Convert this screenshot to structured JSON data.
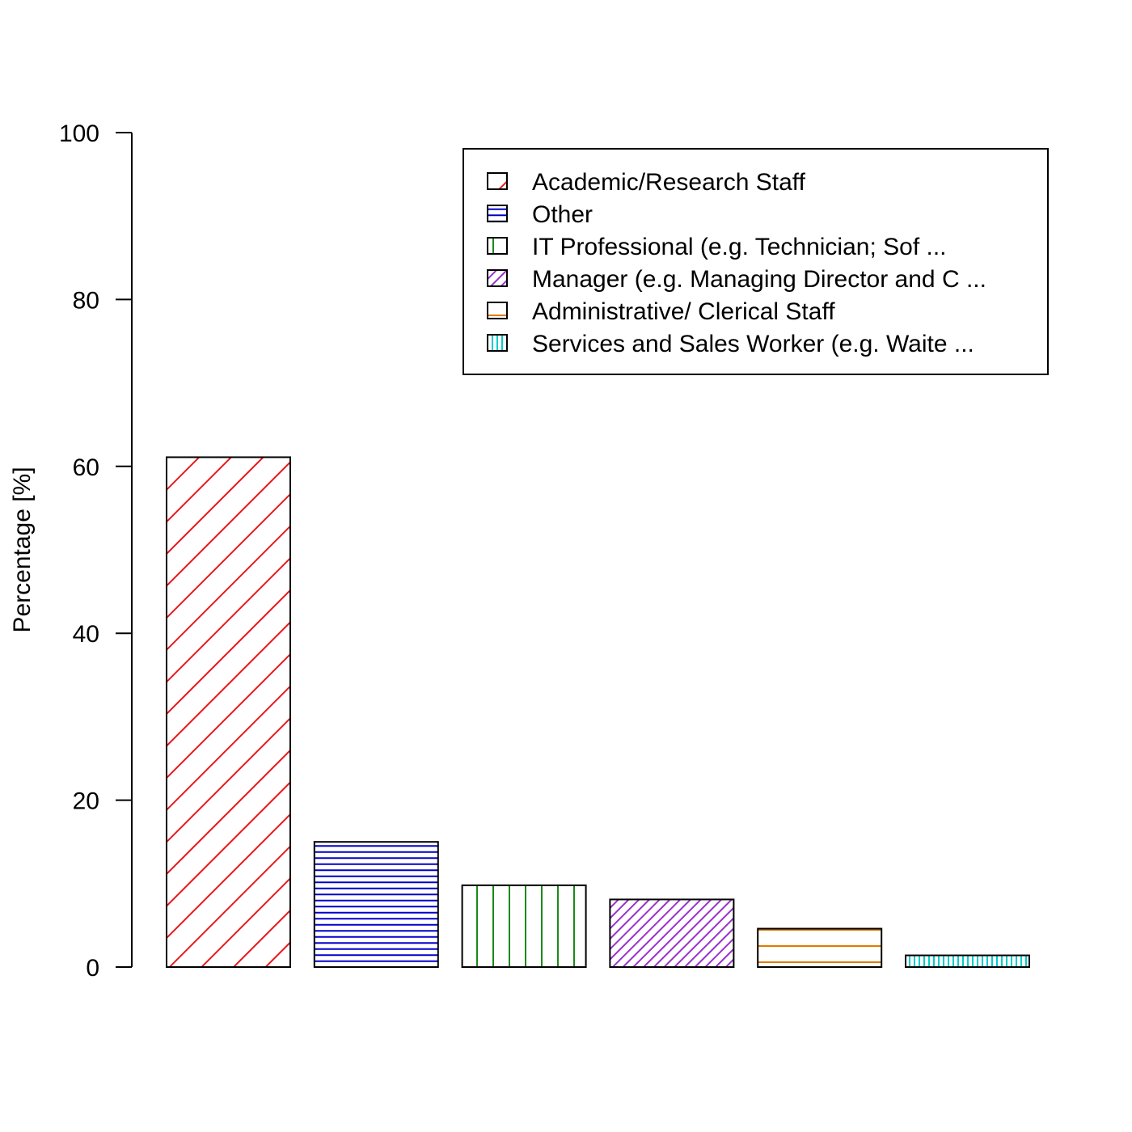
{
  "chart_data": {
    "type": "bar",
    "title": "",
    "xlabel": "",
    "ylabel": "Percentage [%]",
    "ylim": [
      0,
      100
    ],
    "yticks": [
      0,
      20,
      40,
      60,
      80,
      100
    ],
    "grid": false,
    "legend_position": "top-right",
    "categories": [
      "Academic/Research Staff",
      "Other",
      "IT Professional (e.g. Technician; Sof ...",
      "Manager (e.g. Managing Director and C ...",
      "Administrative/ Clerical Staff",
      "Services and Sales Worker (e.g. Waite ..."
    ],
    "values": [
      61.1,
      15.0,
      9.8,
      8.1,
      4.6,
      1.4
    ],
    "colors": [
      "#e41a1c",
      "#0000cc",
      "#1a8a1a",
      "#9932cc",
      "#e07b00",
      "#00cccc"
    ],
    "patterns": [
      "diagonal-sparse",
      "horizontal-dense",
      "vertical-sparse",
      "diagonal-dense",
      "horizontal-very-sparse",
      "vertical-dense"
    ]
  }
}
